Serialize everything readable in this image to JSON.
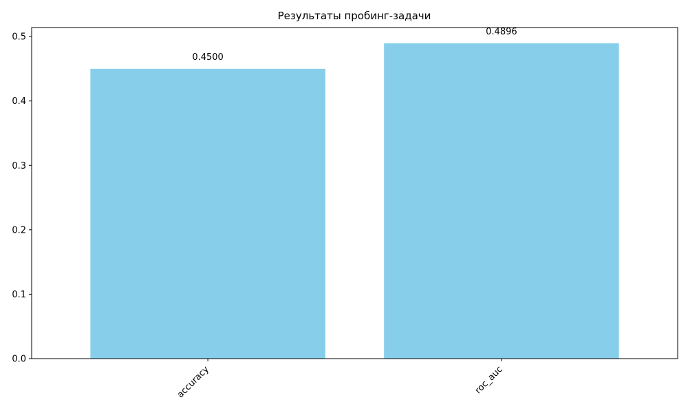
{
  "chart_data": {
    "type": "bar",
    "title": "Результаты пробинг-задачи",
    "xlabel": "",
    "ylabel": "",
    "categories": [
      "accuracy",
      "roc_auc"
    ],
    "values": [
      0.45,
      0.4896
    ],
    "value_labels": [
      "0.4500",
      "0.4896"
    ],
    "ylim": [
      0,
      0.514
    ],
    "yticks": [
      0.0,
      0.1,
      0.2,
      0.3,
      0.4,
      0.5
    ],
    "ytick_labels": [
      "0.0",
      "0.1",
      "0.2",
      "0.3",
      "0.4",
      "0.5"
    ],
    "xtick_rotation_deg": 45,
    "grid": false,
    "bar_color": "#87CEEB"
  }
}
